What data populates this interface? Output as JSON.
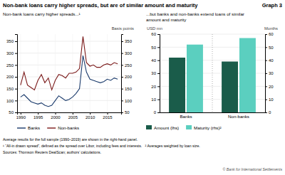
{
  "title": "Non-bank loans carry higher spreads, but are of similar amount and maturity",
  "annotations": [
    "Graph 3",
    "Average results for the full sample (1990–2019) are shown in the right-hand panel.",
    "¹ “All-in drawn spread”, defined as the spread over Libor, including fees and interests.   ² Averages weighted by loan size.",
    "Sources: Thomson Reuters DealScan; authors’ calculations.",
    "© Bank for International Settlements"
  ],
  "chart_data": [
    {
      "type": "line",
      "subtitle": "Non-bank loans carry higher spreads...¹",
      "y2_label": "Basis points",
      "x": [
        1990,
        1991,
        1992,
        1993,
        1994,
        1995,
        1996,
        1997,
        1998,
        1999,
        2000,
        2001,
        2002,
        2003,
        2004,
        2005,
        2006,
        2007,
        2008,
        2009,
        2010,
        2011,
        2012,
        2013,
        2014,
        2015,
        2016,
        2017,
        2018
      ],
      "series": [
        {
          "name": "Banks",
          "color": "#1a3a6b",
          "values": [
            115,
            125,
            110,
            95,
            90,
            85,
            90,
            80,
            75,
            80,
            100,
            120,
            110,
            100,
            105,
            115,
            130,
            150,
            290,
            220,
            190,
            185,
            180,
            175,
            180,
            190,
            185,
            195,
            190
          ]
        },
        {
          "name": "Non-banks",
          "color": "#7b1a1a",
          "values": [
            165,
            220,
            165,
            155,
            145,
            185,
            210,
            175,
            195,
            145,
            185,
            210,
            205,
            195,
            215,
            215,
            220,
            235,
            370,
            260,
            245,
            250,
            240,
            240,
            250,
            255,
            250,
            260,
            255
          ]
        }
      ],
      "xlim": [
        1989,
        2019
      ],
      "xticks": [
        1990,
        1995,
        2000,
        2005,
        2010,
        2015
      ],
      "ylim": [
        50,
        380
      ],
      "yticks": [
        50,
        100,
        150,
        200,
        250,
        300,
        350
      ],
      "y2lim": [
        50,
        380
      ],
      "y2ticks": [
        50,
        100,
        150,
        200,
        250,
        300,
        350
      ],
      "grid": true,
      "legend": "bottom"
    },
    {
      "type": "bar",
      "subtitle": "...but banks and non-banks extend loans of similar\namount and maturity",
      "y_label": "USD mn",
      "y2_label": "Months",
      "categories": [
        "Banks",
        "Non-banks"
      ],
      "series": [
        {
          "name": "Amount (lhs)",
          "color": "#1a5c4a",
          "values": [
            42,
            39
          ]
        },
        {
          "name": "Maturity (rhs)²",
          "color": "#5bcfbf",
          "values": [
            52,
            57
          ],
          "axis": "y2"
        }
      ],
      "ylim": [
        0,
        60
      ],
      "yticks": [
        0,
        10,
        20,
        30,
        40,
        50,
        60
      ],
      "y2lim": [
        0,
        60
      ],
      "y2ticks": [
        0,
        10,
        20,
        30,
        40,
        50,
        60
      ],
      "grid": true,
      "legend": "bottom"
    }
  ]
}
